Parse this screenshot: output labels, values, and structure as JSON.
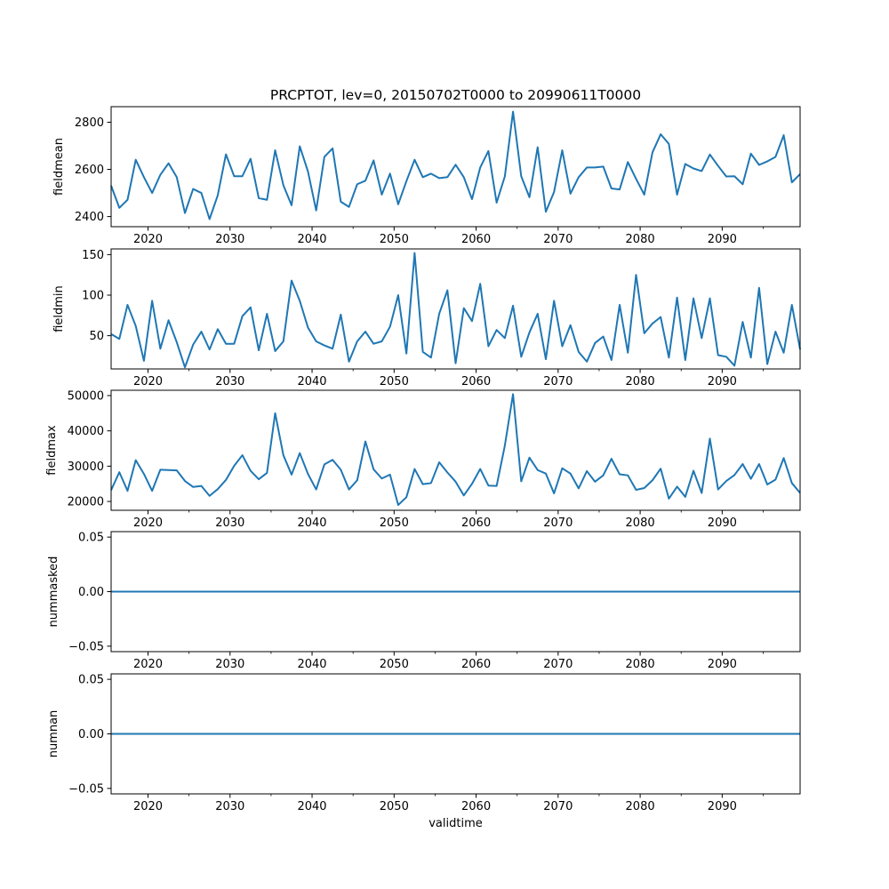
{
  "chart_data": {
    "type": "line",
    "title": "PRCPTOT, lev=0, 20150702T0000 to 20990611T0000",
    "xlabel": "validtime",
    "x_years": [
      2015.5,
      2016.5,
      2017.5,
      2018.5,
      2019.5,
      2020.5,
      2021.5,
      2022.5,
      2023.5,
      2024.5,
      2025.5,
      2026.5,
      2027.5,
      2028.5,
      2029.5,
      2030.5,
      2031.5,
      2032.5,
      2033.5,
      2034.5,
      2035.5,
      2036.5,
      2037.5,
      2038.5,
      2039.5,
      2040.5,
      2041.5,
      2042.5,
      2043.5,
      2044.5,
      2045.5,
      2046.5,
      2047.5,
      2048.5,
      2049.5,
      2050.5,
      2051.5,
      2052.5,
      2053.5,
      2054.5,
      2055.5,
      2056.5,
      2057.5,
      2058.5,
      2059.5,
      2060.5,
      2061.5,
      2062.5,
      2063.5,
      2064.5,
      2065.5,
      2066.5,
      2067.5,
      2068.5,
      2069.5,
      2070.5,
      2071.5,
      2072.5,
      2073.5,
      2074.5,
      2075.5,
      2076.5,
      2077.5,
      2078.5,
      2079.5,
      2080.5,
      2081.5,
      2082.5,
      2083.5,
      2084.5,
      2085.5,
      2086.5,
      2087.5,
      2088.5,
      2089.5,
      2090.5,
      2091.5,
      2092.5,
      2093.5,
      2094.5,
      2095.5,
      2096.5,
      2097.5,
      2098.5,
      2099.5
    ],
    "xlim": [
      2015.5,
      2099.5
    ],
    "xticks": [
      2020,
      2030,
      2040,
      2050,
      2060,
      2070,
      2080,
      2090
    ],
    "xtick_labels": [
      "2020",
      "2030",
      "2040",
      "2050",
      "2060",
      "2070",
      "2080",
      "2090"
    ],
    "line_color": "#1f77b4",
    "subplots": [
      {
        "name": "fieldmean",
        "ylabel": "fieldmean",
        "ylim": [
          2357,
          2866
        ],
        "yticks": [
          2400,
          2600,
          2800
        ],
        "ytick_labels": [
          "2400",
          "2600",
          "2800"
        ],
        "values": [
          2531,
          2437,
          2471,
          2641,
          2567,
          2500,
          2577,
          2626,
          2567,
          2415,
          2517,
          2500,
          2389,
          2490,
          2664,
          2571,
          2571,
          2645,
          2478,
          2471,
          2681,
          2533,
          2448,
          2698,
          2591,
          2426,
          2653,
          2689,
          2463,
          2441,
          2537,
          2552,
          2638,
          2493,
          2582,
          2452,
          2550,
          2641,
          2567,
          2582,
          2563,
          2567,
          2620,
          2567,
          2474,
          2608,
          2678,
          2459,
          2570,
          2845,
          2571,
          2482,
          2694,
          2420,
          2504,
          2681,
          2497,
          2567,
          2608,
          2608,
          2612,
          2519,
          2515,
          2631,
          2560,
          2493,
          2672,
          2749,
          2708,
          2493,
          2623,
          2604,
          2593,
          2663,
          2615,
          2570,
          2571,
          2537,
          2667,
          2619,
          2634,
          2653,
          2745,
          2545,
          2580
        ]
      },
      {
        "name": "fieldmin",
        "ylabel": "fieldmin",
        "ylim": [
          9,
          157
        ],
        "yticks": [
          50,
          100,
          150
        ],
        "ytick_labels": [
          "50",
          "100",
          "150"
        ],
        "values": [
          52,
          46,
          88,
          62,
          19,
          93,
          34,
          69,
          42,
          11,
          39,
          55,
          33,
          58,
          40,
          40,
          74,
          85,
          32,
          77,
          31,
          43,
          118,
          93,
          60,
          43,
          38,
          34,
          76,
          18,
          43,
          55,
          40,
          43,
          61,
          100,
          28,
          152,
          30,
          23,
          77,
          106,
          16,
          84,
          68,
          114,
          37,
          57,
          47,
          87,
          24,
          54,
          77,
          21,
          93,
          37,
          63,
          30,
          18,
          41,
          49,
          20,
          88,
          29,
          125,
          53,
          65,
          73,
          23,
          97,
          20,
          96,
          47,
          96,
          26,
          24,
          13,
          67,
          23,
          109,
          15,
          55,
          29,
          88,
          33
        ]
      },
      {
        "name": "fieldmax",
        "ylabel": "fieldmax",
        "ylim": [
          17500,
          51500
        ],
        "yticks": [
          20000,
          30000,
          40000,
          50000
        ],
        "ytick_labels": [
          "20000",
          "30000",
          "40000",
          "50000"
        ],
        "values": [
          23200,
          28300,
          23000,
          31700,
          27800,
          23000,
          29000,
          28900,
          28800,
          25800,
          24100,
          24400,
          21600,
          23500,
          26100,
          30100,
          33100,
          28700,
          26300,
          28100,
          45000,
          33100,
          27600,
          33700,
          27800,
          23400,
          30500,
          31800,
          29000,
          23400,
          26000,
          37000,
          29100,
          26500,
          27600,
          19000,
          21200,
          29200,
          24900,
          25200,
          31100,
          28200,
          25600,
          21700,
          25000,
          29200,
          24500,
          24400,
          35800,
          50400,
          25700,
          32400,
          28900,
          27900,
          22300,
          29400,
          27900,
          23700,
          28600,
          25600,
          27400,
          32100,
          27700,
          27400,
          23300,
          23800,
          26000,
          29300,
          20800,
          24200,
          21300,
          28700,
          22400,
          37800,
          23400,
          25800,
          27500,
          30600,
          26400,
          30600,
          24800,
          26200,
          32300,
          25200,
          22400
        ]
      },
      {
        "name": "nummasked",
        "ylabel": "nummasked",
        "ylim": [
          -0.055,
          0.055
        ],
        "yticks": [
          -0.05,
          0.0,
          0.05
        ],
        "ytick_labels": [
          "−0.05",
          "0.00",
          "0.05"
        ],
        "values": [
          0,
          0,
          0,
          0,
          0,
          0,
          0,
          0,
          0,
          0,
          0,
          0,
          0,
          0,
          0,
          0,
          0,
          0,
          0,
          0,
          0,
          0,
          0,
          0,
          0,
          0,
          0,
          0,
          0,
          0,
          0,
          0,
          0,
          0,
          0,
          0,
          0,
          0,
          0,
          0,
          0,
          0,
          0,
          0,
          0,
          0,
          0,
          0,
          0,
          0,
          0,
          0,
          0,
          0,
          0,
          0,
          0,
          0,
          0,
          0,
          0,
          0,
          0,
          0,
          0,
          0,
          0,
          0,
          0,
          0,
          0,
          0,
          0,
          0,
          0,
          0,
          0,
          0,
          0,
          0,
          0,
          0,
          0,
          0,
          0
        ]
      },
      {
        "name": "numnan",
        "ylabel": "numnan",
        "ylim": [
          -0.055,
          0.055
        ],
        "yticks": [
          -0.05,
          0.0,
          0.05
        ],
        "ytick_labels": [
          "−0.05",
          "0.00",
          "0.05"
        ],
        "values": [
          0,
          0,
          0,
          0,
          0,
          0,
          0,
          0,
          0,
          0,
          0,
          0,
          0,
          0,
          0,
          0,
          0,
          0,
          0,
          0,
          0,
          0,
          0,
          0,
          0,
          0,
          0,
          0,
          0,
          0,
          0,
          0,
          0,
          0,
          0,
          0,
          0,
          0,
          0,
          0,
          0,
          0,
          0,
          0,
          0,
          0,
          0,
          0,
          0,
          0,
          0,
          0,
          0,
          0,
          0,
          0,
          0,
          0,
          0,
          0,
          0,
          0,
          0,
          0,
          0,
          0,
          0,
          0,
          0,
          0,
          0,
          0,
          0,
          0,
          0,
          0,
          0,
          0,
          0,
          0,
          0,
          0,
          0,
          0,
          0
        ]
      }
    ]
  }
}
